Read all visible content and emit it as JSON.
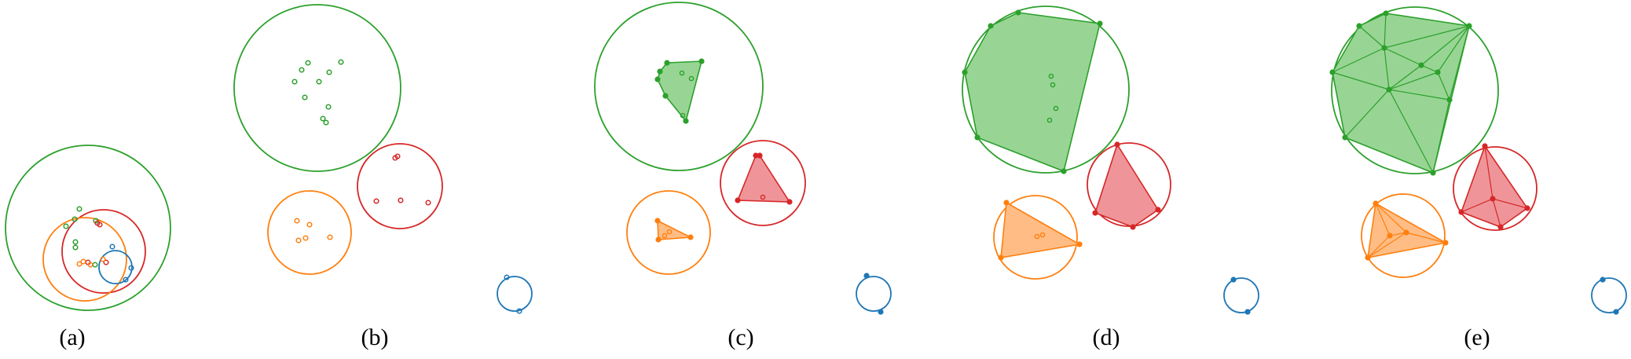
{
  "colors": {
    "green": "#2ca02c",
    "red": "#d62728",
    "orange": "#ff7f0e",
    "blue": "#1f77b4",
    "green_fill": "#98d594",
    "red_fill": "#ef9599",
    "orange_fill": "#ffbd85"
  },
  "labels": {
    "a": "(a)",
    "b": "(b)",
    "c": "(c)",
    "d": "(d)",
    "e": "(e)"
  }
}
